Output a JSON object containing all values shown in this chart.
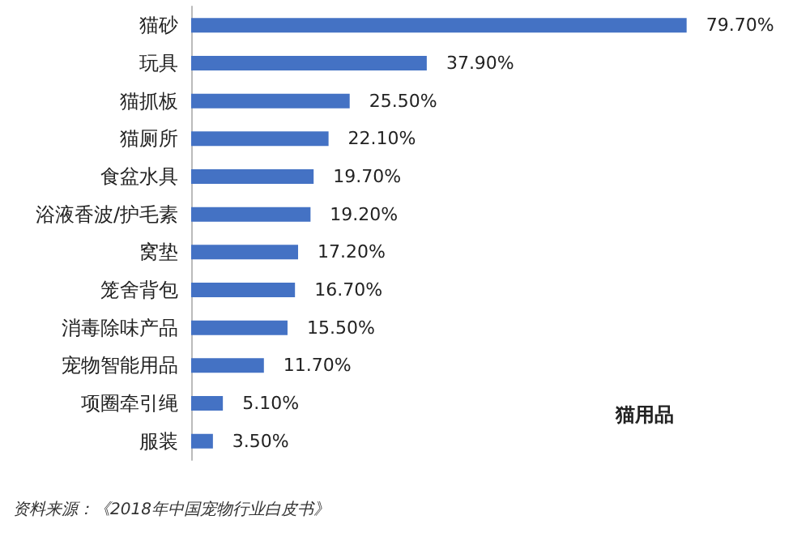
{
  "chart_data": {
    "type": "bar",
    "orientation": "horizontal",
    "categories": [
      "猫砂",
      "玩具",
      "猫抓板",
      "猫厕所",
      "食盆水具",
      "浴液香波/护毛素",
      "窝垫",
      "笼舍背包",
      "消毒除味产品",
      "宠物智能用品",
      "项圈牵引绳",
      "服装"
    ],
    "values": [
      79.7,
      37.9,
      25.5,
      22.1,
      19.7,
      19.2,
      17.2,
      16.7,
      15.5,
      11.7,
      5.1,
      3.5
    ],
    "value_labels": [
      "79.70%",
      "37.90%",
      "25.50%",
      "22.10%",
      "19.70%",
      "19.20%",
      "17.20%",
      "16.70%",
      "15.50%",
      "11.70%",
      "5.10%",
      "3.50%"
    ],
    "color": "#4472c4",
    "annotations": [
      "猫用品",
      "资料来源：《2018年中国宠物行业白皮书》"
    ],
    "grid": false
  }
}
